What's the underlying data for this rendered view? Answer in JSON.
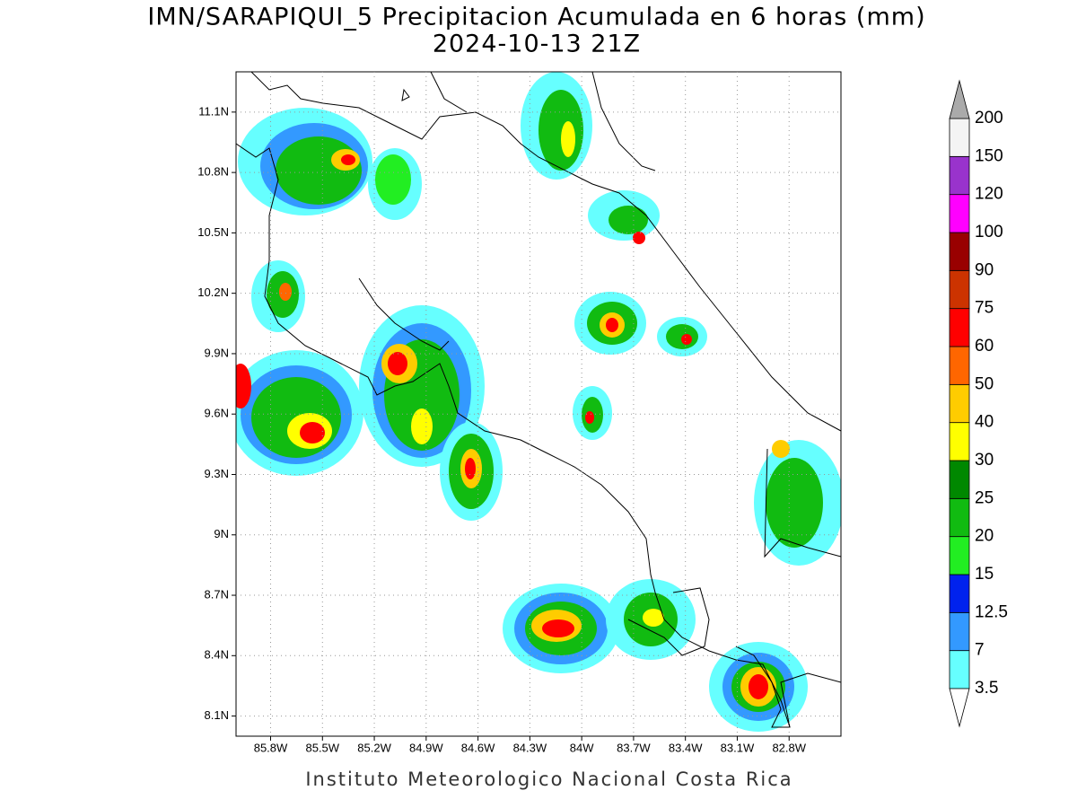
{
  "title": "IMN/SARAPIQUI_5 Precipitacion Acumulada en 6 horas (mm)",
  "subtitle": "2024-10-13 21Z",
  "footer": "Instituto Meteorologico Nacional Costa Rica",
  "map": {
    "lonlim": [
      -86.0,
      -82.5
    ],
    "latlim": [
      8.0,
      11.3
    ],
    "grid": true,
    "lon_ticks": [
      {
        "value": -85.8,
        "label": "85.8W"
      },
      {
        "value": -85.5,
        "label": "85.5W"
      },
      {
        "value": -85.2,
        "label": "85.2W"
      },
      {
        "value": -84.9,
        "label": "84.9W"
      },
      {
        "value": -84.6,
        "label": "84.6W"
      },
      {
        "value": -84.3,
        "label": "84.3W"
      },
      {
        "value": -84.0,
        "label": "84W"
      },
      {
        "value": -83.7,
        "label": "83.7W"
      },
      {
        "value": -83.4,
        "label": "83.4W"
      },
      {
        "value": -83.1,
        "label": "83.1W"
      },
      {
        "value": -82.8,
        "label": "82.8W"
      }
    ],
    "lat_ticks": [
      {
        "value": 11.1,
        "label": "11.1N"
      },
      {
        "value": 10.8,
        "label": "10.8N"
      },
      {
        "value": 10.5,
        "label": "10.5N"
      },
      {
        "value": 10.2,
        "label": "10.2N"
      },
      {
        "value": 9.9,
        "label": "9.9N"
      },
      {
        "value": 9.6,
        "label": "9.6N"
      },
      {
        "value": 9.3,
        "label": "9.3N"
      },
      {
        "value": 9.0,
        "label": "9N"
      },
      {
        "value": 8.7,
        "label": "8.7N"
      },
      {
        "value": 8.4,
        "label": "8.4N"
      },
      {
        "value": 8.1,
        "label": "8.1N"
      }
    ]
  },
  "legend": {
    "levels": [
      3.5,
      7,
      12.5,
      15,
      20,
      25,
      30,
      40,
      50,
      60,
      75,
      90,
      100,
      120,
      150,
      200
    ],
    "colors": [
      "#66ffff",
      "#3399ff",
      "#0022ee",
      "#22ee22",
      "#11bb11",
      "#008800",
      "#ffff00",
      "#ffcc00",
      "#ff6600",
      "#ff0000",
      "#cc3300",
      "#990000",
      "#ff00ff",
      "#9933cc",
      "#f4f4f4"
    ],
    "under_color": "#ffffff",
    "over_color": "#aaaaaa"
  }
}
